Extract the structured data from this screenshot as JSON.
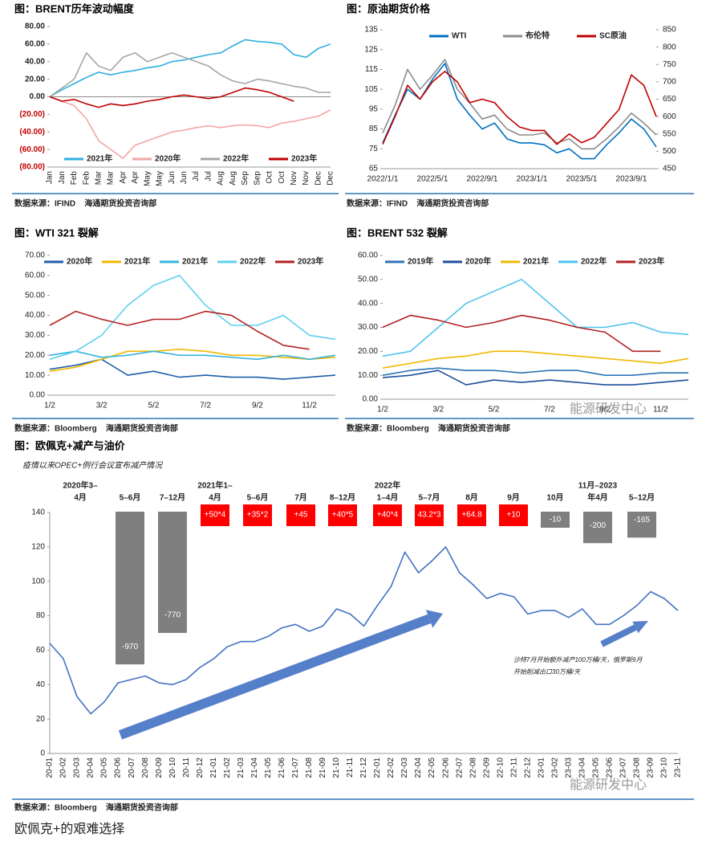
{
  "chart_data": [
    {
      "type": "line",
      "title": "图：BRENT历年波动幅度",
      "source": "数据来源：IFIND    海通期货投资咨询部",
      "categories": [
        "Jan",
        "Jan",
        "Feb",
        "Feb",
        "Mar",
        "Mar",
        "Apr",
        "Apr",
        "May",
        "May",
        "Jun",
        "Jun",
        "Jul",
        "Jul",
        "Aug",
        "Aug",
        "Sep",
        "Sep",
        "Oct",
        "Oct",
        "Nov",
        "Nov",
        "Dec",
        "Dec"
      ],
      "series": [
        {
          "name": "2021年",
          "color": "#2eb0e0",
          "values": [
            0,
            8,
            15,
            22,
            28,
            25,
            28,
            30,
            33,
            35,
            40,
            42,
            45,
            48,
            50,
            58,
            65,
            63,
            62,
            60,
            48,
            45,
            55,
            60
          ]
        },
        {
          "name": "2020年",
          "color": "#f4a6a6",
          "values": [
            0,
            -5,
            -10,
            -25,
            -50,
            -60,
            -70,
            -55,
            -50,
            -45,
            -40,
            -38,
            -35,
            -33,
            -35,
            -33,
            -32,
            -33,
            -35,
            -30,
            -28,
            -25,
            -22,
            -15
          ]
        },
        {
          "name": "2022年",
          "color": "#a6a6a6",
          "values": [
            0,
            10,
            20,
            50,
            35,
            30,
            45,
            50,
            40,
            45,
            50,
            45,
            40,
            35,
            25,
            18,
            15,
            20,
            18,
            15,
            12,
            10,
            5,
            5
          ]
        },
        {
          "name": "2023年",
          "color": "#c00000",
          "values": [
            0,
            -5,
            -3,
            -8,
            -12,
            -8,
            -10,
            -8,
            -5,
            -3,
            0,
            2,
            0,
            -2,
            0,
            5,
            10,
            8,
            5,
            0,
            -5,
            null,
            null,
            null
          ]
        }
      ],
      "ylim": [
        -80,
        80
      ],
      "yticks": [
        {
          "value": 80,
          "label": "80.00"
        },
        {
          "value": 60,
          "label": "60.00"
        },
        {
          "value": 40,
          "label": "40.00"
        },
        {
          "value": 20,
          "label": "20.00"
        },
        {
          "value": 0,
          "label": "0.00"
        },
        {
          "value": -20,
          "label": "(20.00)"
        },
        {
          "value": -40,
          "label": "(40.00)"
        },
        {
          "value": -60,
          "label": "(60.00)"
        },
        {
          "value": -80,
          "label": "(80.00)"
        }
      ],
      "negative_tick_color": "#c00000",
      "legend": "bottom"
    },
    {
      "type": "line",
      "title": "图：原油期货价格",
      "source": "数据来源：IFIND    海通期货投资咨询部",
      "categories": [
        "2022/1/1",
        null,
        null,
        null,
        "2022/5/1",
        null,
        null,
        null,
        "2022/9/1",
        null,
        null,
        null,
        "2023/1/1",
        null,
        null,
        null,
        "2023/5/1",
        null,
        null,
        null,
        "2023/9/1",
        null,
        null
      ],
      "series": [
        {
          "name": "WTI",
          "color": "#0070c0",
          "values": [
            78,
            92,
            105,
            100,
            110,
            118,
            100,
            92,
            85,
            88,
            80,
            78,
            78,
            77,
            73,
            75,
            70,
            70,
            77,
            83,
            90,
            85,
            76
          ]
        },
        {
          "name": "布伦特",
          "color": "#8c8c8c",
          "values": [
            83,
            97,
            115,
            105,
            112,
            120,
            105,
            98,
            90,
            92,
            85,
            82,
            82,
            83,
            78,
            80,
            75,
            75,
            80,
            86,
            93,
            88,
            82
          ]
        },
        {
          "name": "SC原油",
          "color": "#c00000",
          "axis": "y2",
          "values": [
            520,
            600,
            690,
            650,
            700,
            730,
            700,
            640,
            650,
            640,
            600,
            570,
            560,
            560,
            520,
            550,
            525,
            540,
            580,
            620,
            720,
            690,
            600
          ]
        }
      ],
      "ylim": [
        65,
        135
      ],
      "yticks": [
        65,
        75,
        85,
        95,
        105,
        115,
        125,
        135
      ],
      "y2lim": [
        450,
        850
      ],
      "y2ticks": [
        450,
        500,
        550,
        600,
        650,
        700,
        750,
        800,
        850
      ],
      "legend": "top"
    },
    {
      "type": "line",
      "title": "图：WTI 321 裂解",
      "source": "数据来源：Bloomberg    海通期货投资咨询部",
      "categories": [
        "1/2",
        null,
        "3/2",
        null,
        "5/2",
        null,
        "7/2",
        null,
        "9/2",
        null,
        "11/2",
        null
      ],
      "series": [
        {
          "name": "2020年",
          "color": "#1f5fa8",
          "values": [
            13,
            15,
            18,
            10,
            12,
            9,
            10,
            9,
            9,
            8,
            9,
            10
          ]
        },
        {
          "name": "2021年",
          "color": "#f2b800",
          "values": [
            12,
            14,
            18,
            22,
            22,
            23,
            22,
            20,
            20,
            19,
            18,
            19
          ]
        },
        {
          "name": "2021年",
          "color": "#35b4e0",
          "values": [
            20,
            22,
            19,
            20,
            22,
            20,
            20,
            19,
            18,
            20,
            18,
            20
          ]
        },
        {
          "name": "2022年",
          "color": "#5fd0f0",
          "values": [
            18,
            22,
            30,
            45,
            55,
            60,
            45,
            35,
            35,
            40,
            30,
            28
          ]
        },
        {
          "name": "2023年",
          "color": "#b22222",
          "values": [
            35,
            42,
            38,
            35,
            38,
            38,
            42,
            40,
            32,
            25,
            23,
            null
          ]
        }
      ],
      "ylim": [
        0,
        70
      ],
      "yticks": [
        {
          "value": 0,
          "label": "0.00"
        },
        {
          "value": 10,
          "label": "10.00"
        },
        {
          "value": 20,
          "label": "20.00"
        },
        {
          "value": 30,
          "label": "30.00"
        },
        {
          "value": 40,
          "label": "40.00"
        },
        {
          "value": 50,
          "label": "50.00"
        },
        {
          "value": 60,
          "label": "60.00"
        },
        {
          "value": 70,
          "label": "70.00"
        }
      ],
      "legend": "top"
    },
    {
      "type": "line",
      "title": "图：BRENT 532 裂解",
      "source": "数据来源：Bloomberg    海通期货投资咨询部",
      "categories": [
        "1/2",
        null,
        "3/2",
        null,
        "5/2",
        null,
        "7/2",
        null,
        "9/2",
        null,
        "11/2",
        null
      ],
      "series": [
        {
          "name": "2019年",
          "color": "#2e75b6",
          "values": [
            10,
            12,
            13,
            12,
            12,
            11,
            12,
            12,
            10,
            10,
            11,
            11
          ]
        },
        {
          "name": "2020年",
          "color": "#1f4e9a",
          "values": [
            9,
            10,
            12,
            6,
            8,
            7,
            8,
            7,
            6,
            6,
            7,
            8
          ]
        },
        {
          "name": "2021年",
          "color": "#f2b800",
          "values": [
            13,
            15,
            17,
            18,
            20,
            20,
            19,
            18,
            17,
            16,
            15,
            17
          ]
        },
        {
          "name": "2022年",
          "color": "#4cc3ea",
          "values": [
            18,
            20,
            30,
            40,
            45,
            50,
            40,
            30,
            30,
            32,
            28,
            27
          ]
        },
        {
          "name": "2023年",
          "color": "#b22222",
          "values": [
            30,
            35,
            33,
            30,
            32,
            35,
            33,
            30,
            28,
            20,
            20,
            null
          ]
        }
      ],
      "ylim": [
        0,
        60
      ],
      "yticks": [
        {
          "value": 0,
          "label": "0.00"
        },
        {
          "value": 10,
          "label": "10.00"
        },
        {
          "value": 20,
          "label": "20.00"
        },
        {
          "value": 30,
          "label": "30.00"
        },
        {
          "value": 40,
          "label": "40.00"
        },
        {
          "value": 50,
          "label": "50.00"
        },
        {
          "value": 60,
          "label": "60.00"
        }
      ],
      "legend": "top"
    },
    {
      "type": "line",
      "title": "图：欧佩克+减产与油价",
      "subtitle": "疫情以来OPEC+例行会议宣布减产情况",
      "source": "数据来源：Bloomberg    海通期货投资咨询部",
      "categories": [
        "20-01",
        "20-02",
        "20-03",
        "20-04",
        "20-05",
        "20-06",
        "20-07",
        "20-08",
        "20-09",
        "20-10",
        "20-11",
        "20-12",
        "21-01",
        "21-02",
        "21-03",
        "21-04",
        "21-05",
        "21-06",
        "21-07",
        "21-08",
        "21-09",
        "21-10",
        "21-11",
        "21-12",
        "22-01",
        "22-02",
        "22-03",
        "22-04",
        "22-05",
        "22-06",
        "22-07",
        "22-08",
        "22-09",
        "22-10",
        "22-11",
        "22-12",
        "23-01",
        "23-02",
        "23-03",
        "23-04",
        "23-05",
        "23-06",
        "23-07",
        "23-08",
        "23-09",
        "23-10",
        "23-11"
      ],
      "values": [
        64,
        55,
        33,
        23,
        30,
        41,
        43,
        45,
        41,
        40,
        43,
        50,
        55,
        62,
        65,
        65,
        68,
        73,
        75,
        71,
        74,
        84,
        81,
        74,
        86,
        97,
        117,
        105,
        112,
        120,
        105,
        98,
        90,
        93,
        91,
        81,
        83,
        83,
        79,
        84,
        75,
        75,
        80,
        86,
        94,
        90,
        83
      ],
      "color": "#4472c4",
      "ylim": [
        0,
        140
      ],
      "yticks": [
        0,
        20,
        40,
        60,
        80,
        100,
        120,
        140
      ],
      "cuts": [
        {
          "period": [
            "2020年3–",
            "4月"
          ]
        },
        {
          "period": [
            "5–6月"
          ],
          "value": -970,
          "color": "#7f7f7f"
        },
        {
          "period": [
            "7–12月"
          ],
          "value": -770,
          "color": "#7f7f7f"
        },
        {
          "period": [
            "2021年1–",
            "4月"
          ],
          "label": "+50*4",
          "color": "#ff0000"
        },
        {
          "period": [
            "5–6月"
          ],
          "label": "+35*2",
          "color": "#ff0000"
        },
        {
          "period": [
            "7月"
          ],
          "label": "+45",
          "color": "#ff0000"
        },
        {
          "period": [
            "8–12月"
          ],
          "label": "+40*5",
          "color": "#ff0000"
        },
        {
          "period": [
            "2022年",
            "1–4月"
          ],
          "label": "+40*4",
          "color": "#ff0000"
        },
        {
          "period": [
            "5–7月"
          ],
          "label": "43.2*3",
          "color": "#ff0000"
        },
        {
          "period": [
            "8月"
          ],
          "label": "+64.8",
          "color": "#ff0000"
        },
        {
          "period": [
            "9月"
          ],
          "label": "+10",
          "color": "#ff0000"
        },
        {
          "period": [
            "10月"
          ],
          "value": -10,
          "color": "#7f7f7f"
        },
        {
          "period": [
            "11月–2023",
            "年4月"
          ],
          "value": -200,
          "color": "#7f7f7f"
        },
        {
          "period": [
            "5–12月"
          ],
          "value": -165,
          "color": "#7f7f7f"
        }
      ],
      "annotation": [
        "沙特7月开始额外减产100万桶/天，俄罗斯9月",
        "开始削减出口30万桶/天"
      ]
    }
  ],
  "watermark": "能源研发中心",
  "caption": "欧佩克+的艰难选择"
}
